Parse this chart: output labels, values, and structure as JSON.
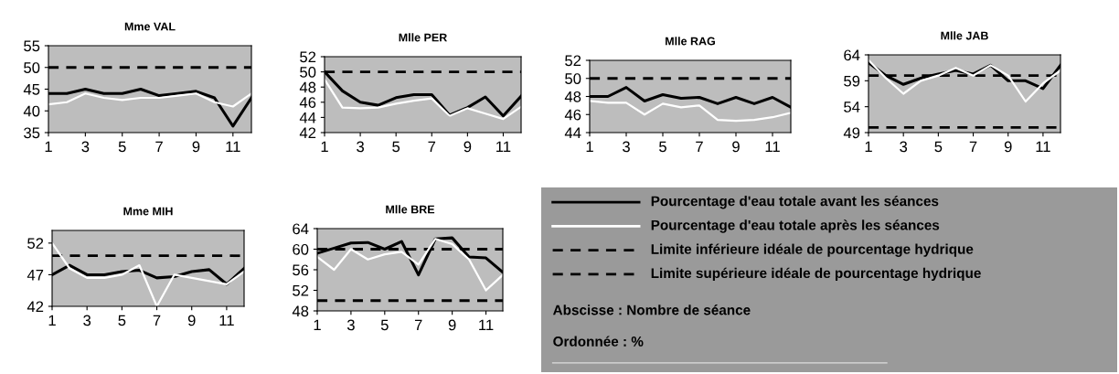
{
  "chart_data": [
    {
      "type": "line",
      "title": "Mme VAL",
      "x": [
        1,
        2,
        3,
        4,
        5,
        6,
        7,
        8,
        9,
        10,
        11,
        12
      ],
      "xlim": [
        1,
        12
      ],
      "xticks": [
        1,
        3,
        5,
        7,
        9,
        11
      ],
      "ylim": [
        35,
        55
      ],
      "yticks": [
        35,
        40,
        45,
        50,
        55
      ],
      "series": [
        {
          "color": "#000000",
          "values": [
            44,
            44,
            45,
            44,
            44,
            45,
            43.5,
            44,
            44.5,
            43,
            36.5,
            43
          ]
        },
        {
          "color": "#ffffff",
          "values": [
            41.5,
            42,
            44,
            43,
            42.5,
            43,
            43,
            43.5,
            44,
            42,
            41,
            44
          ]
        }
      ],
      "ref_lines": [
        {
          "axis": "y",
          "value": 50,
          "color": "#000000",
          "line_style": "dashed"
        }
      ]
    },
    {
      "type": "line",
      "title": "Mlle PER",
      "x": [
        1,
        2,
        3,
        4,
        5,
        6,
        7,
        8,
        9,
        10,
        11,
        12
      ],
      "xlim": [
        1,
        12
      ],
      "xticks": [
        1,
        3,
        5,
        7,
        9,
        11
      ],
      "ylim": [
        42,
        52
      ],
      "yticks": [
        42,
        44,
        46,
        48,
        50,
        52
      ],
      "series": [
        {
          "color": "#000000",
          "values": [
            50,
            47.5,
            46,
            45.6,
            46.6,
            47,
            47,
            44.3,
            45.3,
            46.7,
            44.2,
            46.8
          ]
        },
        {
          "color": "#ffffff",
          "values": [
            49,
            45.3,
            45.2,
            45.3,
            45.8,
            46.2,
            46.5,
            44.2,
            45.2,
            44.5,
            43.8,
            45.4
          ]
        }
      ],
      "ref_lines": [
        {
          "axis": "y",
          "value": 50,
          "color": "#000000",
          "line_style": "dashed"
        }
      ]
    },
    {
      "type": "line",
      "title": "Mlle RAG",
      "x": [
        1,
        2,
        3,
        4,
        5,
        6,
        7,
        8,
        9,
        10,
        11,
        12
      ],
      "xlim": [
        1,
        12
      ],
      "xticks": [
        1,
        3,
        5,
        7,
        9,
        11
      ],
      "ylim": [
        44,
        52
      ],
      "yticks": [
        44,
        46,
        48,
        50,
        52
      ],
      "series": [
        {
          "color": "#000000",
          "values": [
            48,
            48,
            49,
            47.5,
            48.2,
            47.8,
            47.9,
            47.2,
            47.9,
            47.2,
            47.9,
            46.8
          ]
        },
        {
          "color": "#ffffff",
          "values": [
            47.5,
            47.3,
            47.3,
            46,
            47.2,
            46.8,
            47,
            45.4,
            45.3,
            45.4,
            45.7,
            46.2
          ]
        }
      ],
      "ref_lines": [
        {
          "axis": "y",
          "value": 50,
          "color": "#000000",
          "line_style": "dashed"
        }
      ]
    },
    {
      "type": "line",
      "title": "Mlle JAB",
      "x": [
        1,
        2,
        3,
        4,
        5,
        6,
        7,
        8,
        9,
        10,
        11,
        12
      ],
      "xlim": [
        1,
        12
      ],
      "xticks": [
        1,
        3,
        5,
        7,
        9,
        11
      ],
      "ylim": [
        49,
        64
      ],
      "yticks": [
        49,
        54,
        59,
        64
      ],
      "series": [
        {
          "color": "#000000",
          "values": [
            62.5,
            60,
            58.3,
            59.5,
            60.3,
            61,
            60.3,
            62,
            59,
            59,
            57.5,
            62
          ]
        },
        {
          "color": "#ffffff",
          "values": [
            63,
            59.5,
            56.5,
            59,
            60,
            61.5,
            60,
            62,
            60,
            55,
            58.5,
            61
          ]
        }
      ],
      "ref_lines": [
        {
          "axis": "y",
          "value": 50,
          "color": "#000000",
          "line_style": "dashed"
        },
        {
          "axis": "y",
          "value": 60,
          "color": "#000000",
          "line_style": "dashed"
        }
      ]
    },
    {
      "type": "line",
      "title": "Mme MIH",
      "x": [
        1,
        2,
        3,
        4,
        5,
        6,
        7,
        8,
        9,
        10,
        11,
        12
      ],
      "xlim": [
        1,
        12
      ],
      "xticks": [
        1,
        3,
        5,
        7,
        9,
        11
      ],
      "ylim": [
        42,
        54
      ],
      "yticks": [
        42,
        47,
        52
      ],
      "series": [
        {
          "color": "#000000",
          "values": [
            47,
            48.5,
            47,
            47,
            47.5,
            47.7,
            46.5,
            46.7,
            47.5,
            47.8,
            45.5,
            48
          ]
        },
        {
          "color": "#ffffff",
          "values": [
            52,
            48,
            46.5,
            46.5,
            47,
            48.5,
            42,
            47,
            46.5,
            46,
            45.5,
            47.5
          ]
        }
      ],
      "ref_lines": [
        {
          "axis": "y",
          "value": 50,
          "color": "#000000",
          "line_style": "dashed"
        }
      ]
    },
    {
      "type": "line",
      "title": "Mlle BRE",
      "x": [
        1,
        2,
        3,
        4,
        5,
        6,
        7,
        8,
        9,
        10,
        11,
        12
      ],
      "xlim": [
        1,
        12
      ],
      "xticks": [
        1,
        3,
        5,
        7,
        9,
        11
      ],
      "ylim": [
        48,
        64
      ],
      "yticks": [
        48,
        52,
        56,
        60,
        64
      ],
      "series": [
        {
          "color": "#000000",
          "values": [
            59.2,
            60.2,
            61.2,
            61.3,
            60,
            61.5,
            55,
            62,
            62.2,
            58.5,
            58.3,
            55.5
          ]
        },
        {
          "color": "#ffffff",
          "values": [
            58.5,
            56,
            60,
            58,
            59,
            59.5,
            57,
            62,
            61,
            58,
            52,
            55
          ]
        }
      ],
      "ref_lines": [
        {
          "axis": "y",
          "value": 50,
          "color": "#000000",
          "line_style": "dashed"
        },
        {
          "axis": "y",
          "value": 60,
          "color": "#000000",
          "line_style": "dashed"
        }
      ]
    },
    {
      "type": "other",
      "annotations": [
        "Pourcentage d'eau totale avant les séances",
        "Pourcentage d'eau totale après les séances",
        "Limite inférieure idéale de pourcentage hydrique",
        "Limite supérieure idéale de pourcentage hydrique",
        "Abscisse : Nombre de séance",
        "Ordonnée : %"
      ]
    }
  ]
}
